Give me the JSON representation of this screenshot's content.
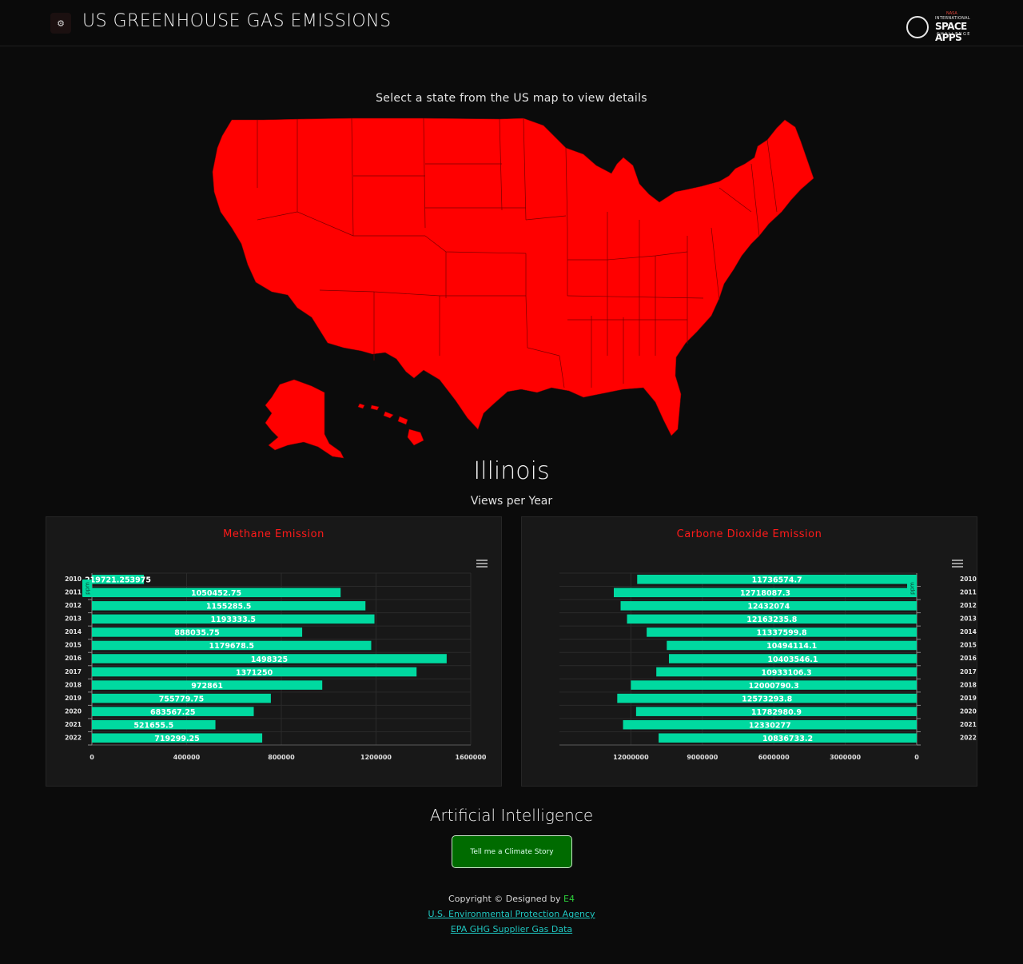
{
  "header": {
    "title": "US GREENHOUSE GAS EMISSIONS",
    "logo_icon": "gear-icon",
    "space_apps_logo": {
      "nasa": "NASA",
      "international": "INTERNATIONAL",
      "space_apps": "SPACE APPS",
      "challenge": "CHALLENGE"
    }
  },
  "map": {
    "caption": "Select a state from the US map to view details",
    "fill_color": "#ff0000"
  },
  "selected_state": "Illinois",
  "views_caption": "Views per Year",
  "methane_chart": {
    "title": "Methane Emission",
    "unit_label": "ppm",
    "bar_color": "#00d9a0",
    "title_color": "#ff1a1a",
    "chart_data": {
      "type": "bar",
      "orientation": "horizontal",
      "categories": [
        "2010",
        "2011",
        "2012",
        "2013",
        "2014",
        "2015",
        "2016",
        "2017",
        "2018",
        "2019",
        "2020",
        "2021",
        "2022"
      ],
      "values": [
        219721.253975,
        1050452.75,
        1155285.5,
        1193333.5,
        888035.75,
        1179678.5,
        1498325,
        1371250,
        972861,
        755779.75,
        683567.25,
        521655.5,
        719299.25
      ],
      "value_labels": [
        "219721.253975",
        "1050452.75",
        "1155285.5",
        "1193333.5",
        "888035.75",
        "1179678.5",
        "1498325",
        "1371250",
        "972861",
        "755779.75",
        "683567.25",
        "521655.5",
        "719299.25"
      ],
      "xlim": [
        0,
        1600000
      ],
      "xticks": [
        "0",
        "400000",
        "800000",
        "1200000",
        "1600000"
      ],
      "xtick_values": [
        0,
        400000,
        800000,
        1200000,
        1600000
      ],
      "reversed": false,
      "grid": true
    }
  },
  "co2_chart": {
    "title": "Carbone Dioxide Emission",
    "unit_label": "ppm",
    "bar_color": "#00d9a0",
    "title_color": "#ff1a1a",
    "chart_data": {
      "type": "bar",
      "orientation": "horizontal",
      "categories": [
        "2010",
        "2011",
        "2012",
        "2013",
        "2014",
        "2015",
        "2016",
        "2017",
        "2018",
        "2019",
        "2020",
        "2021",
        "2022"
      ],
      "values": [
        11736574.7,
        12718087.3,
        12432074,
        12163235.8,
        11337599.8,
        10494114.1,
        10403546.1,
        10933106.3,
        12000790.3,
        12573293.8,
        11782980.9,
        12330277,
        10836733.2
      ],
      "value_labels": [
        "11736574.7",
        "12718087.3",
        "12432074",
        "12163235.8",
        "11337599.8",
        "10494114.1",
        "10403546.1",
        "10933106.3",
        "12000790.3",
        "12573293.8",
        "11782980.9",
        "12330277",
        "10836733.2"
      ],
      "xlim": [
        0,
        15000000
      ],
      "xticks": [
        "12000000",
        "9000000",
        "6000000",
        "3000000",
        "0"
      ],
      "xtick_values": [
        12000000,
        9000000,
        6000000,
        3000000,
        0
      ],
      "reversed": true,
      "grid": true
    }
  },
  "ai": {
    "title": "Artificial Intelligence",
    "button_label": "Tell me a Climate Story"
  },
  "footer": {
    "copyright": "Copyright © Designed by ",
    "designer": "E4",
    "link1": "U.S. Environmental Protection Agency",
    "link2": "EPA GHG Supplier Gas Data"
  }
}
